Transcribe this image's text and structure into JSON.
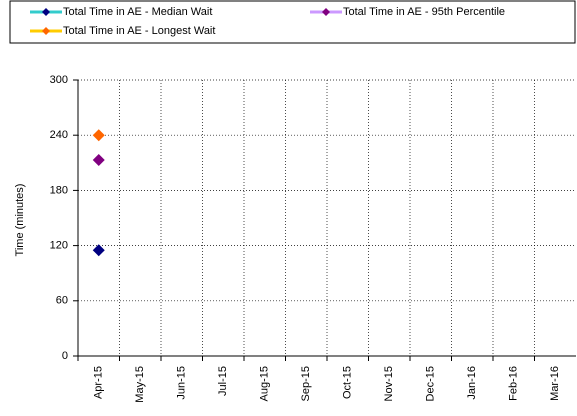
{
  "chart_data": {
    "type": "line",
    "y_label": "Time (minutes)",
    "categories": [
      "Apr-15",
      "May-15",
      "Jun-15",
      "Jul-15",
      "Aug-15",
      "Sep-15",
      "Oct-15",
      "Nov-15",
      "Dec-15",
      "Jan-16",
      "Feb-16",
      "Mar-16"
    ],
    "series": [
      {
        "name": "Total Time in AE - Median Wait",
        "color": "#33cccc",
        "marker_color": "#000080",
        "values": [
          115,
          null,
          null,
          null,
          null,
          null,
          null,
          null,
          null,
          null,
          null,
          null
        ]
      },
      {
        "name": "Total Time in AE - 95th Percentile",
        "color": "#cc99ff",
        "marker_color": "#800080",
        "values": [
          213,
          null,
          null,
          null,
          null,
          null,
          null,
          null,
          null,
          null,
          null,
          null
        ]
      },
      {
        "name": "Total Time in AE - Longest Wait",
        "color": "#ffcc00",
        "marker_color": "#ff6600",
        "values": [
          240,
          null,
          null,
          null,
          null,
          null,
          null,
          null,
          null,
          null,
          null,
          null
        ]
      }
    ],
    "ylim": [
      0,
      300
    ],
    "yticks": [
      0,
      60,
      120,
      180,
      240,
      300
    ],
    "grid": true
  }
}
